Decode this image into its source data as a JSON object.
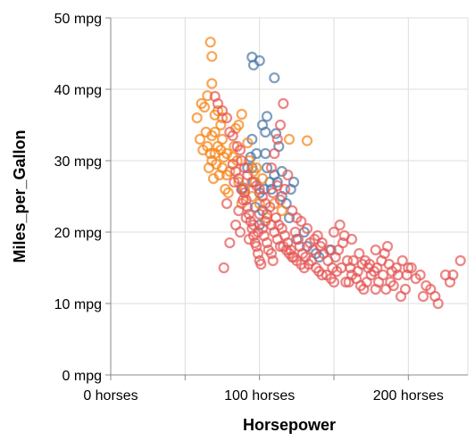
{
  "chart_data": {
    "type": "scatter",
    "title": "",
    "xlabel": "Horsepower",
    "ylabel": "Miles_per_Gallon",
    "x_ticks": [
      {
        "value": 0,
        "label": "0 horses"
      },
      {
        "value": 100,
        "label": "100 horses"
      },
      {
        "value": 200,
        "label": "200 horses"
      }
    ],
    "y_ticks": [
      {
        "value": 0,
        "label": "0 mpg"
      },
      {
        "value": 10,
        "label": "10 mpg"
      },
      {
        "value": 20,
        "label": "20 mpg"
      },
      {
        "value": 30,
        "label": "30 mpg"
      },
      {
        "value": 40,
        "label": "40 mpg"
      },
      {
        "value": 50,
        "label": "50 mpg"
      }
    ],
    "xlim": [
      0,
      240
    ],
    "ylim": [
      0,
      50
    ],
    "grid": true,
    "legend": "none",
    "series": [
      {
        "color": "#4c78a8",
        "points": [
          [
            95,
            44.5
          ],
          [
            96,
            43.4
          ],
          [
            100,
            44.0
          ],
          [
            102,
            35.0
          ],
          [
            104,
            34.0
          ],
          [
            110,
            41.6
          ],
          [
            105,
            36.2
          ],
          [
            111,
            33.8
          ],
          [
            88,
            26.0
          ],
          [
            89,
            26.2
          ],
          [
            92,
            29.0
          ],
          [
            94,
            30.5
          ],
          [
            95,
            33.0
          ],
          [
            95,
            29.0
          ],
          [
            96,
            27.0
          ],
          [
            98,
            31.0
          ],
          [
            100,
            25.5
          ],
          [
            102,
            23.0
          ],
          [
            103,
            26.0
          ],
          [
            104,
            31.0
          ],
          [
            105,
            29.0
          ],
          [
            108,
            26.0
          ],
          [
            110,
            28.0
          ],
          [
            112,
            27.0
          ],
          [
            113,
            32.0
          ],
          [
            115,
            25.0
          ],
          [
            118,
            24.0
          ],
          [
            120,
            22.0
          ],
          [
            121,
            26.0
          ],
          [
            123,
            27.0
          ],
          [
            125,
            19.0
          ],
          [
            130,
            20.0
          ],
          [
            132,
            18.0
          ],
          [
            138,
            17.0
          ],
          [
            140,
            16.5
          ],
          [
            148,
            17.5
          ],
          [
            115,
            28.5
          ],
          [
            97,
            23.5
          ],
          [
            100,
            21.0
          ],
          [
            107,
            27.0
          ]
        ]
      },
      {
        "color": "#f58518",
        "points": [
          [
            67,
            46.6
          ],
          [
            68,
            44.6
          ],
          [
            65,
            39.1
          ],
          [
            68,
            40.8
          ],
          [
            70,
            36.4
          ],
          [
            72,
            37.0
          ],
          [
            74,
            35.0
          ],
          [
            75,
            36.0
          ],
          [
            60,
            33.0
          ],
          [
            62,
            31.5
          ],
          [
            65,
            32.0
          ],
          [
            67,
            31.0
          ],
          [
            68,
            30.0
          ],
          [
            68,
            33.5
          ],
          [
            70,
            34.0
          ],
          [
            70,
            31.0
          ],
          [
            72,
            32.0
          ],
          [
            74,
            31.5
          ],
          [
            75,
            33.0
          ],
          [
            75,
            29.0
          ],
          [
            76,
            30.5
          ],
          [
            78,
            31.0
          ],
          [
            78,
            28.0
          ],
          [
            80,
            28.5
          ],
          [
            83,
            32.0
          ],
          [
            85,
            30.0
          ],
          [
            86,
            27.0
          ],
          [
            88,
            24.0
          ],
          [
            90,
            26.0
          ],
          [
            95,
            25.0
          ],
          [
            97,
            27.0
          ],
          [
            100,
            24.0
          ],
          [
            105,
            22.0
          ],
          [
            110,
            24.0
          ],
          [
            115,
            23.0
          ],
          [
            120,
            33.0
          ],
          [
            132,
            32.8
          ],
          [
            58,
            36.0
          ],
          [
            61,
            38.0
          ],
          [
            63,
            37.5
          ],
          [
            64,
            34.0
          ],
          [
            66,
            29.0
          ],
          [
            69,
            27.5
          ],
          [
            71,
            29.5
          ],
          [
            73,
            28.0
          ],
          [
            77,
            26.0
          ],
          [
            79,
            25.5
          ],
          [
            82,
            30.5
          ],
          [
            84,
            34.5
          ],
          [
            86,
            35.0
          ],
          [
            88,
            36.5
          ],
          [
            92,
            32.5
          ],
          [
            93,
            30.0
          ],
          [
            96,
            28.5
          ],
          [
            98,
            29.0
          ],
          [
            102,
            27.5
          ]
        ]
      },
      {
        "color": "#e45756",
        "points": [
          [
            70,
            39.0
          ],
          [
            72,
            38.0
          ],
          [
            75,
            37.0
          ],
          [
            78,
            36.0
          ],
          [
            80,
            34.0
          ],
          [
            82,
            33.5
          ],
          [
            85,
            32.0
          ],
          [
            87,
            31.5
          ],
          [
            88,
            30.0
          ],
          [
            90,
            29.0
          ],
          [
            92,
            28.0
          ],
          [
            95,
            27.0
          ],
          [
            98,
            26.5
          ],
          [
            100,
            26.0
          ],
          [
            102,
            25.0
          ],
          [
            104,
            24.0
          ],
          [
            105,
            22.5
          ],
          [
            108,
            21.0
          ],
          [
            110,
            20.0
          ],
          [
            112,
            19.0
          ],
          [
            114,
            18.0
          ],
          [
            116,
            18.0
          ],
          [
            118,
            17.5
          ],
          [
            120,
            17.0
          ],
          [
            122,
            16.5
          ],
          [
            125,
            16.0
          ],
          [
            128,
            15.5
          ],
          [
            130,
            15.0
          ],
          [
            133,
            15.5
          ],
          [
            135,
            16.0
          ],
          [
            138,
            15.0
          ],
          [
            140,
            14.5
          ],
          [
            142,
            14.0
          ],
          [
            145,
            14.0
          ],
          [
            148,
            13.5
          ],
          [
            150,
            13.0
          ],
          [
            152,
            14.5
          ],
          [
            155,
            15.0
          ],
          [
            158,
            13.0
          ],
          [
            160,
            13.0
          ],
          [
            162,
            14.0
          ],
          [
            165,
            13.5
          ],
          [
            168,
            12.5
          ],
          [
            170,
            12.0
          ],
          [
            172,
            13.0
          ],
          [
            175,
            14.0
          ],
          [
            178,
            12.0
          ],
          [
            180,
            13.0
          ],
          [
            183,
            14.0
          ],
          [
            185,
            12.0
          ],
          [
            188,
            13.0
          ],
          [
            190,
            12.5
          ],
          [
            193,
            14.0
          ],
          [
            195,
            11.0
          ],
          [
            198,
            12.0
          ],
          [
            200,
            15.0
          ],
          [
            205,
            13.5
          ],
          [
            208,
            14.0
          ],
          [
            210,
            11.0
          ],
          [
            215,
            12.0
          ],
          [
            220,
            10.0
          ],
          [
            225,
            14.0
          ],
          [
            230,
            14.0
          ],
          [
            235,
            16.0
          ],
          [
            82,
            29.5
          ],
          [
            84,
            28.5
          ],
          [
            86,
            27.5
          ],
          [
            88,
            26.0
          ],
          [
            90,
            25.5
          ],
          [
            91,
            24.5
          ],
          [
            92,
            23.5
          ],
          [
            93,
            22.5
          ],
          [
            94,
            21.5
          ],
          [
            95,
            20.5
          ],
          [
            96,
            19.5
          ],
          [
            97,
            18.5
          ],
          [
            98,
            18.0
          ],
          [
            99,
            17.0
          ],
          [
            100,
            16.0
          ],
          [
            101,
            15.5
          ],
          [
            103,
            19.5
          ],
          [
            105,
            18.5
          ],
          [
            106,
            17.5
          ],
          [
            108,
            17.0
          ],
          [
            109,
            16.0
          ],
          [
            111,
            22.0
          ],
          [
            113,
            21.0
          ],
          [
            115,
            20.5
          ],
          [
            117,
            19.5
          ],
          [
            119,
            18.5
          ],
          [
            121,
            17.5
          ],
          [
            123,
            16.5
          ],
          [
            124,
            20.0
          ],
          [
            126,
            19.0
          ],
          [
            127,
            18.0
          ],
          [
            129,
            17.0
          ],
          [
            131,
            16.5
          ],
          [
            134,
            18.5
          ],
          [
            136,
            17.5
          ],
          [
            139,
            19.5
          ],
          [
            141,
            18.0
          ],
          [
            143,
            17.0
          ],
          [
            146,
            16.0
          ],
          [
            149,
            15.0
          ],
          [
            151,
            16.5
          ],
          [
            153,
            17.5
          ],
          [
            156,
            18.5
          ],
          [
            159,
            16.0
          ],
          [
            161,
            15.0
          ],
          [
            163,
            16.0
          ],
          [
            166,
            14.5
          ],
          [
            169,
            15.5
          ],
          [
            171,
            16.0
          ],
          [
            174,
            15.5
          ],
          [
            177,
            14.5
          ],
          [
            179,
            15.0
          ],
          [
            182,
            16.0
          ],
          [
            184,
            17.0
          ],
          [
            187,
            15.5
          ],
          [
            189,
            14.5
          ],
          [
            192,
            15.0
          ],
          [
            196,
            16.0
          ],
          [
            199,
            14.0
          ],
          [
            202,
            15.0
          ],
          [
            212,
            12.5
          ],
          [
            218,
            11.0
          ],
          [
            228,
            13.0
          ],
          [
            108,
            29.0
          ],
          [
            110,
            31.0
          ],
          [
            112,
            33.0
          ],
          [
            114,
            35.0
          ],
          [
            116,
            38.0
          ],
          [
            76,
            15.0
          ],
          [
            78,
            24.0
          ],
          [
            80,
            18.5
          ],
          [
            83,
            27.0
          ],
          [
            84,
            21.0
          ],
          [
            86,
            23.0
          ],
          [
            87,
            20.0
          ],
          [
            89,
            24.5
          ],
          [
            91,
            22.0
          ],
          [
            93,
            19.0
          ],
          [
            96,
            21.0
          ],
          [
            99,
            20.0
          ],
          [
            100,
            22.5
          ],
          [
            102,
            20.5
          ],
          [
            104,
            21.5
          ],
          [
            107,
            23.5
          ],
          [
            109,
            25.5
          ],
          [
            112,
            26.5
          ],
          [
            114,
            24.5
          ],
          [
            117,
            26.0
          ],
          [
            119,
            28.0
          ],
          [
            122,
            23.0
          ],
          [
            125,
            22.0
          ],
          [
            128,
            21.5
          ],
          [
            132,
            20.5
          ],
          [
            137,
            19.0
          ],
          [
            142,
            18.5
          ],
          [
            147,
            17.5
          ],
          [
            150,
            20.0
          ],
          [
            154,
            21.0
          ],
          [
            157,
            19.5
          ],
          [
            162,
            19.0
          ],
          [
            167,
            17.0
          ],
          [
            173,
            15.0
          ],
          [
            178,
            17.5
          ],
          [
            186,
            18.0
          ]
        ]
      }
    ]
  }
}
